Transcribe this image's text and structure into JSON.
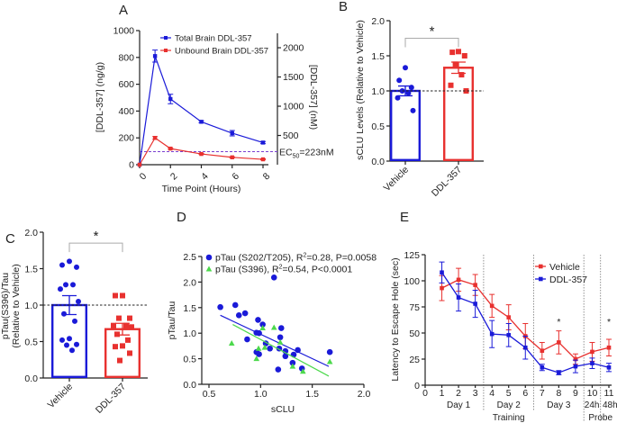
{
  "colors": {
    "blue": "#1a1ad8",
    "red": "#e8312f",
    "green": "#4cd94c",
    "bracket": "#aaaaaa",
    "ref_line": "#7a3fd0"
  },
  "panel_labels": [
    "A",
    "B",
    "C",
    "D",
    "E"
  ],
  "chart_data": [
    {
      "panel": "A",
      "type": "line",
      "xlabel": "Time Point (Hours)",
      "ylabel": "[DDL-357] (ng/g)",
      "y2label": "[DDL-357] (nM)",
      "xlim": [
        0,
        8
      ],
      "ylim": [
        0,
        1000
      ],
      "y2lim": [
        0,
        2293
      ],
      "xticks": [
        "0",
        "2",
        "4",
        "6",
        "8"
      ],
      "yticks": [
        "0",
        "200",
        "400",
        "600",
        "800",
        "1000"
      ],
      "y2ticks": [
        "500",
        "1000",
        "1500",
        "2000"
      ],
      "legend": "top-right",
      "series": [
        {
          "name": "Total Brain DDL-357",
          "color": "#1a1ad8",
          "x": [
            0,
            1,
            2,
            4,
            6,
            8
          ],
          "y": [
            0,
            810,
            490,
            320,
            235,
            165
          ],
          "err": [
            0,
            45,
            35,
            8,
            20,
            8
          ]
        },
        {
          "name": "Unbound Brain DDL-357",
          "color": "#e8312f",
          "x": [
            0,
            1,
            2,
            4,
            6,
            8
          ],
          "y": [
            0,
            200,
            120,
            80,
            55,
            40
          ],
          "err": [
            0,
            10,
            6,
            4,
            4,
            4
          ]
        }
      ],
      "reference_line": {
        "value_nM": 223,
        "label": "EC",
        "label_sub": "50",
        "label_rest": "=223nM"
      }
    },
    {
      "panel": "B",
      "type": "bar",
      "ylabel": "sCLU Levels (Relative to Vehicle)",
      "ylim": [
        0,
        2.0
      ],
      "yticks": [
        "0.0",
        "0.5",
        "1.0",
        "1.5",
        "2.0"
      ],
      "categories": [
        "Vehicle",
        "DDL-357"
      ],
      "means": [
        1.0,
        1.33
      ],
      "sem": [
        0.07,
        0.08
      ],
      "colors": [
        "#1a1ad8",
        "#e8312f"
      ],
      "points": [
        [
          1.33,
          1.15,
          1.05,
          1.0,
          0.97,
          0.9,
          0.72
        ],
        [
          1.56,
          1.55,
          1.5,
          1.38,
          1.23,
          1.08,
          1.0
        ]
      ],
      "reference_value": 1.0,
      "significance": {
        "label": "*",
        "level": 1.75
      }
    },
    {
      "panel": "C",
      "type": "bar",
      "ylabel": "pTau(S396)/Tau",
      "ylabel2": "(Relative to Vehicle)",
      "ylim": [
        0,
        2.0
      ],
      "yticks": [
        "0.0",
        "0.5",
        "1.0",
        "1.5",
        "2.0"
      ],
      "categories": [
        "Vehicle",
        "DDL-357"
      ],
      "means": [
        1.0,
        0.67
      ],
      "sem": [
        0.13,
        0.08
      ],
      "colors": [
        "#1a1ad8",
        "#e8312f"
      ],
      "points": [
        [
          1.6,
          1.55,
          1.52,
          1.28,
          1.28,
          1.22,
          1.05,
          0.88,
          0.78,
          0.54,
          0.52,
          0.46,
          0.45,
          0.38
        ],
        [
          1.13,
          1.13,
          0.82,
          0.82,
          0.72,
          0.72,
          0.7,
          0.6,
          0.52,
          0.44,
          0.43,
          0.34,
          0.24
        ]
      ],
      "reference_value": 1.0,
      "significance": {
        "label": "*",
        "level": 1.85
      }
    },
    {
      "panel": "D",
      "type": "scatter",
      "xlabel": "sCLU",
      "ylabel": "pTau/Tau",
      "xlim": [
        0.5,
        2.0
      ],
      "ylim": [
        0,
        2.5
      ],
      "xticks": [
        "0.5",
        "1.0",
        "1.5",
        "2.0"
      ],
      "yticks": [
        "0.0",
        "0.5",
        "1.0",
        "1.5",
        "2.0",
        "2.5"
      ],
      "legend": "top-left",
      "series": [
        {
          "name": "pTau (S202/T205), R",
          "name_sup": "2",
          "name_rest": "=0.28, P=0.0058",
          "color": "#1a1ad8",
          "marker": "circle",
          "x": [
            0.61,
            0.755,
            0.79,
            0.85,
            0.975,
            1.02,
            0.96,
            0.985,
            0.87,
            1.05,
            0.96,
            0.985,
            1.09,
            1.18,
            1.19,
            1.2,
            1.13,
            1.24,
            1.24,
            1.32,
            1.31,
            1.36,
            1.4,
            1.17,
            1.67
          ],
          "y": [
            1.51,
            1.55,
            1.35,
            1.39,
            1.26,
            1.17,
            1.01,
            1.0,
            0.88,
            0.8,
            0.63,
            0.59,
            0.7,
            0.7,
            0.92,
            1.1,
            2.09,
            0.65,
            0.55,
            0.58,
            0.42,
            0.67,
            0.31,
            0.29,
            0.63
          ],
          "fit": {
            "x": [
              0.61,
              1.66
            ],
            "y": [
              1.35,
              0.35
            ]
          }
        },
        {
          "name": "pTau (S396), R",
          "name_sup": "2",
          "name_rest": "=0.54, P<0.0001",
          "color": "#4cd94c",
          "marker": "triangle",
          "x": [
            0.72,
            0.96,
            0.98,
            1.02,
            1.04,
            1.13,
            1.19,
            1.31,
            1.41,
            1.67
          ],
          "y": [
            0.8,
            0.5,
            0.7,
            1.1,
            0.72,
            1.11,
            0.82,
            0.35,
            0.25,
            0.44
          ],
          "fit": {
            "x": [
              0.73,
              1.66
            ],
            "y": [
              1.17,
              0.16
            ]
          }
        }
      ]
    },
    {
      "panel": "E",
      "type": "line",
      "ylabel": "Latency to Escape Hole (sec)",
      "xlim": [
        0,
        11
      ],
      "ylim": [
        0,
        125
      ],
      "xticks": [
        "0",
        "1",
        "2",
        "3",
        "4",
        "5",
        "6",
        "7",
        "8",
        "9",
        "10",
        "11"
      ],
      "yticks": [
        "0",
        "25",
        "50",
        "75",
        "100",
        "125"
      ],
      "legend": "top-right",
      "series": [
        {
          "name": "Vehicle",
          "color": "#e8312f",
          "x": [
            1,
            2,
            3,
            4,
            5,
            6,
            7,
            8,
            9,
            10,
            11
          ],
          "y": [
            93,
            101,
            96,
            76,
            65,
            47,
            33,
            41,
            25,
            32,
            36
          ],
          "err": [
            12,
            11,
            10,
            11,
            12,
            12,
            8,
            11,
            5,
            9,
            8
          ]
        },
        {
          "name": "DDL-357",
          "color": "#1a1ad8",
          "x": [
            1,
            2,
            3,
            4,
            5,
            6,
            7,
            8,
            9,
            10,
            11
          ],
          "y": [
            108,
            84,
            78,
            49,
            48,
            36,
            17,
            12,
            18,
            21,
            17
          ],
          "err": [
            10,
            13,
            13,
            13,
            11,
            11,
            3,
            2,
            6,
            5,
            4
          ]
        }
      ],
      "dividers": [
        3.5,
        6.5,
        9.5,
        10.5
      ],
      "significance": [
        {
          "x": 8,
          "label": "*"
        },
        {
          "x": 11,
          "label": "*"
        }
      ],
      "groups": [
        {
          "label": "Day 1",
          "x": 2
        },
        {
          "label": "Day 2",
          "x": 5
        },
        {
          "label": "Day 3",
          "x": 8
        },
        {
          "label": "24h",
          "x": 10
        },
        {
          "label": "48h",
          "x": 11
        }
      ],
      "supergroups": [
        {
          "label": "Training",
          "x": 5
        },
        {
          "label": "Probe",
          "x": 10.5
        }
      ]
    }
  ]
}
